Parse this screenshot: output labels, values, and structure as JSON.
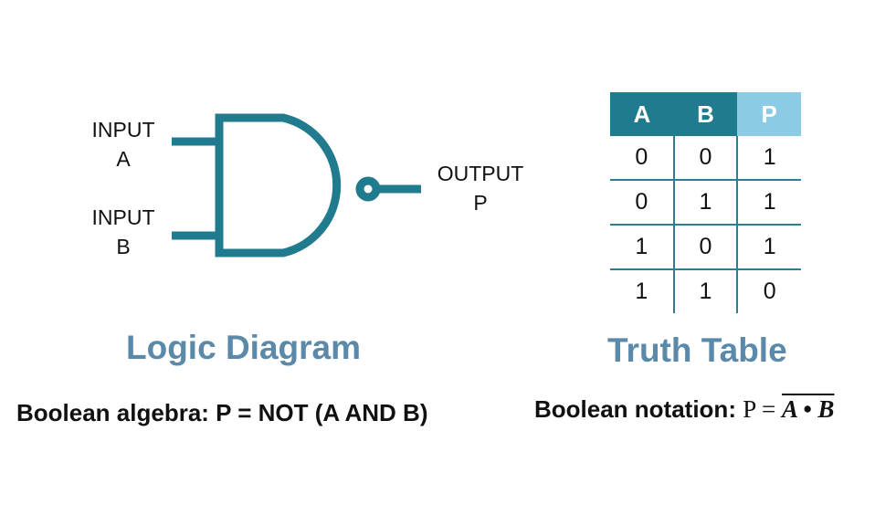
{
  "colors": {
    "gate": "#217b8e",
    "table_header_ab": "#217b8e",
    "table_header_p": "#8ccbe6",
    "table_lines": "#2a8090",
    "title": "#5a89a9"
  },
  "logic_diagram": {
    "title": "Logic Diagram",
    "input_a": [
      "INPUT",
      "A"
    ],
    "input_b": [
      "INPUT",
      "B"
    ],
    "output": [
      "OUTPUT",
      "P"
    ],
    "gate_icon": "nand-gate-icon"
  },
  "truth_table": {
    "title": "Truth Table",
    "headers": [
      "A",
      "B",
      "P"
    ],
    "rows": [
      [
        "0",
        "0",
        "1"
      ],
      [
        "0",
        "1",
        "1"
      ],
      [
        "1",
        "0",
        "1"
      ],
      [
        "1",
        "1",
        "0"
      ]
    ]
  },
  "boolean_algebra": {
    "label": "Boolean algebra: P = NOT (A AND B)"
  },
  "boolean_notation": {
    "label": "Boolean notation: ",
    "lhs": "P = ",
    "expression": "A • B"
  }
}
